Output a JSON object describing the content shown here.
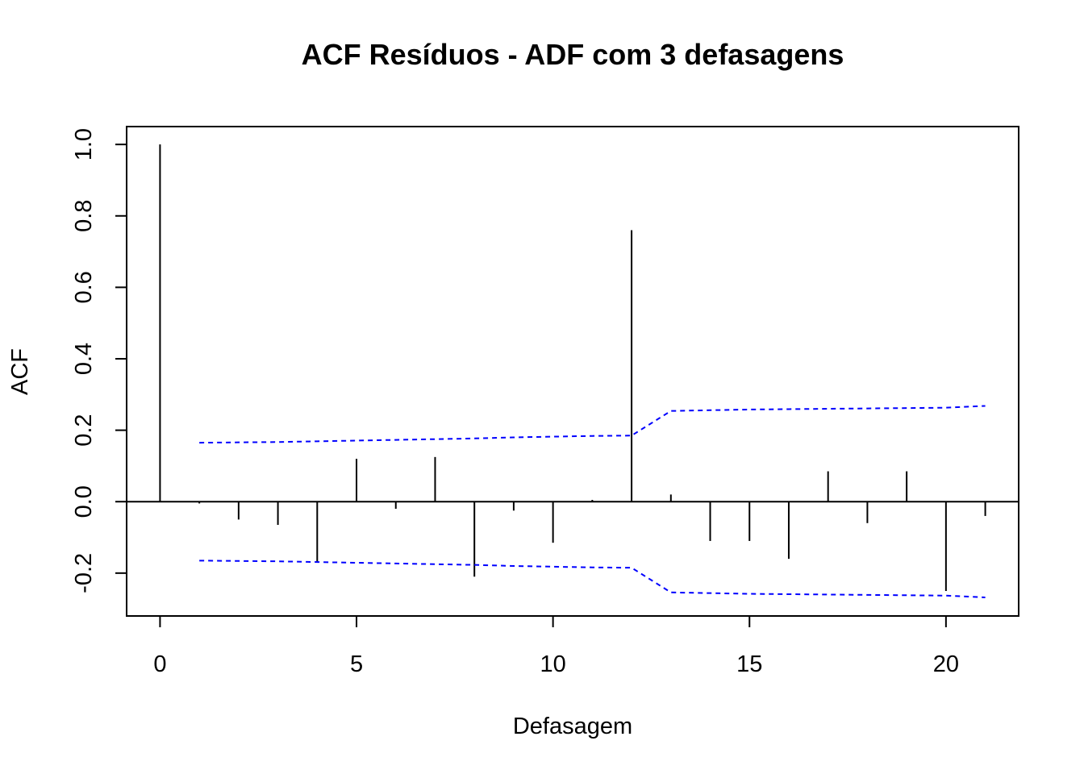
{
  "chart_data": {
    "type": "bar",
    "title": "ACF Resíduos - ADF com 3 defasagens",
    "xlabel": "Defasagem",
    "ylabel": "ACF",
    "x": [
      0,
      1,
      2,
      3,
      4,
      5,
      6,
      7,
      8,
      9,
      10,
      11,
      12,
      13,
      14,
      15,
      16,
      17,
      18,
      19,
      20,
      21
    ],
    "values": [
      1.0,
      -0.005,
      -0.05,
      -0.065,
      -0.17,
      0.12,
      -0.02,
      0.125,
      -0.21,
      -0.025,
      -0.115,
      0.005,
      0.76,
      0.02,
      -0.11,
      -0.11,
      -0.16,
      0.085,
      -0.06,
      0.085,
      -0.25,
      -0.04
    ],
    "conf_band_upper": [
      0.165,
      0.166,
      0.167,
      0.169,
      0.171,
      0.173,
      0.175,
      0.177,
      0.18,
      0.182,
      0.184,
      0.185,
      0.254,
      0.256,
      0.258,
      0.259,
      0.26,
      0.261,
      0.262,
      0.263,
      0.268
    ],
    "conf_band_lower": [
      -0.165,
      -0.166,
      -0.167,
      -0.169,
      -0.171,
      -0.173,
      -0.175,
      -0.177,
      -0.18,
      -0.182,
      -0.184,
      -0.185,
      -0.254,
      -0.256,
      -0.258,
      -0.259,
      -0.26,
      -0.261,
      -0.262,
      -0.263,
      -0.268
    ],
    "conf_band_x": [
      1,
      2,
      3,
      4,
      5,
      6,
      7,
      8,
      9,
      10,
      11,
      12,
      13,
      14,
      15,
      16,
      17,
      18,
      19,
      20,
      21
    ],
    "xlim": [
      -0.85,
      21.85
    ],
    "ylim": [
      -0.32,
      1.05
    ],
    "xticks": [
      "0",
      "5",
      "10",
      "15",
      "20"
    ],
    "yticks": [
      "-0.2",
      "0.0",
      "0.2",
      "0.4",
      "0.6",
      "0.8",
      "1.0"
    ],
    "band_color": "#0000ff",
    "bar_color": "#000000",
    "grid": false
  }
}
